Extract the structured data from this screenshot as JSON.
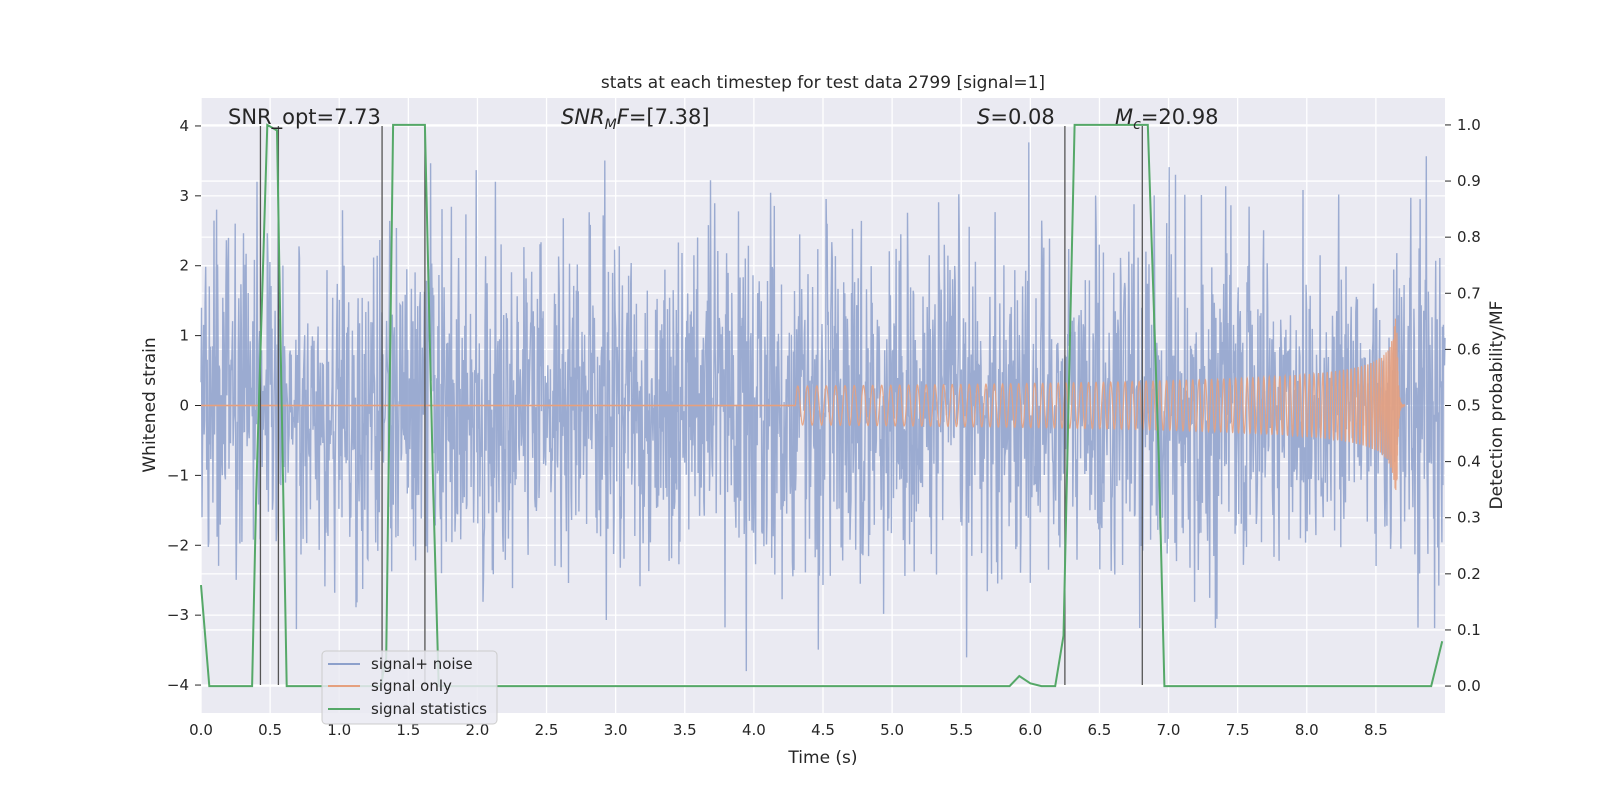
{
  "chart_data": {
    "type": "line",
    "title": "stats at each timestep for test data 2799 [signal=1]",
    "xlabel": "Time (s)",
    "ylabel_left": "Whitened strain",
    "ylabel_right": "Detection probability/MF",
    "xlim": [
      0.0,
      9.0
    ],
    "ylim_left": [
      -4.4,
      4.4
    ],
    "ylim_right": [
      -0.048,
      1.048
    ],
    "x_ticks": [
      "0.0",
      "0.5",
      "1.0",
      "1.5",
      "2.0",
      "2.5",
      "3.0",
      "3.5",
      "4.0",
      "4.5",
      "5.0",
      "5.5",
      "6.0",
      "6.5",
      "7.0",
      "7.5",
      "8.0",
      "8.5"
    ],
    "x_tick_values": [
      0.0,
      0.5,
      1.0,
      1.5,
      2.0,
      2.5,
      3.0,
      3.5,
      4.0,
      4.5,
      5.0,
      5.5,
      6.0,
      6.5,
      7.0,
      7.5,
      8.0,
      8.5
    ],
    "y_left_ticks": [
      "4",
      "3",
      "2",
      "1",
      "0",
      "−1",
      "−2",
      "−3",
      "−4"
    ],
    "y_left_tick_values": [
      4,
      3,
      2,
      1,
      0,
      -1,
      -2,
      -3,
      -4
    ],
    "y_right_ticks": [
      "1.0",
      "0.9",
      "0.8",
      "0.7",
      "0.6",
      "0.5",
      "0.4",
      "0.3",
      "0.2",
      "0.1",
      "0.0"
    ],
    "y_right_tick_values": [
      1.0,
      0.9,
      0.8,
      0.7,
      0.6,
      0.5,
      0.4,
      0.3,
      0.2,
      0.1,
      0.0
    ],
    "grid": true,
    "legend_position": "lower-left",
    "series": [
      {
        "name": "signal+ noise",
        "color": "#8da0cb",
        "note": "dense whitened-strain noise, amplitude mostly within ±2, peaks to about ±3.8"
      },
      {
        "name": "signal only",
        "color": "#e5a07e",
        "peak_time": 8.65,
        "peak_amplitude": 1.6
      },
      {
        "name": "signal statistics",
        "color": "#55a868",
        "x": [
          0.0,
          0.06,
          0.15,
          0.3,
          0.37,
          0.4,
          0.48,
          0.55,
          0.58,
          0.62,
          0.7,
          1.2,
          1.3,
          1.34,
          1.39,
          1.45,
          1.5,
          1.55,
          1.62,
          1.68,
          1.72,
          2.0,
          5.5,
          5.85,
          5.92,
          6.0,
          6.08,
          6.18,
          6.24,
          6.32,
          6.8,
          6.85,
          6.93,
          6.97,
          7.5,
          8.0,
          8.9,
          8.98
        ],
        "values": [
          0.18,
          0.0,
          0.0,
          0.0,
          0.0,
          0.35,
          1.0,
          0.99,
          0.55,
          0.0,
          0.0,
          0.0,
          0.0,
          0.05,
          1.0,
          1.0,
          1.0,
          1.0,
          1.0,
          0.35,
          0.0,
          0.0,
          0.0,
          0.0,
          0.018,
          0.005,
          0.0,
          0.0,
          0.09,
          1.0,
          1.0,
          1.0,
          0.4,
          0.0,
          0.0,
          0.0,
          0.0,
          0.08
        ]
      }
    ],
    "vertical_markers": [
      0.43,
      0.56,
      1.31,
      1.62,
      6.25,
      6.81
    ],
    "annotations": {
      "snr_opt": "SNR_opt=7.73",
      "snr_mf": "=[7.38]",
      "s_stat": "=0.08",
      "mchirp": "=20.98"
    },
    "colors": {
      "background": "#eaeaf2",
      "grid": "#ffffff",
      "marker": "#555555"
    }
  }
}
